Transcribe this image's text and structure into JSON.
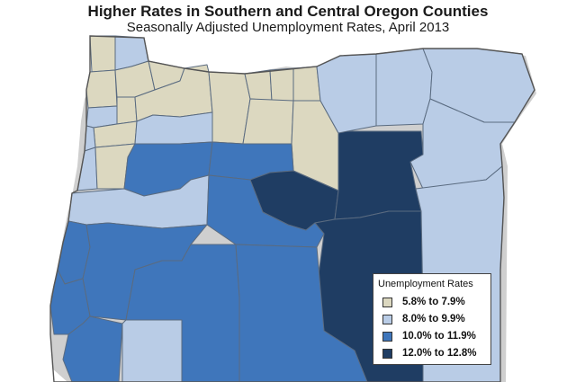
{
  "title": "Higher Rates in Southern and Central Oregon Counties",
  "subtitle": "Seasonally Adjusted Unemployment Rates, April 2013",
  "legend": {
    "title": "Unemployment Rates",
    "items": [
      {
        "label": "5.8% to 7.9%",
        "color": "#dcd8c0"
      },
      {
        "label": "8.0% to 9.9%",
        "color": "#b9cce6"
      },
      {
        "label": "10.0% to 11.9%",
        "color": "#3f76bb"
      },
      {
        "label": "12.0% to 12.8%",
        "color": "#1f3d63"
      }
    ]
  },
  "colors": {
    "county_border": "#5a6b80",
    "state_border": "#555555",
    "shadow": "#c8c8c8"
  }
}
